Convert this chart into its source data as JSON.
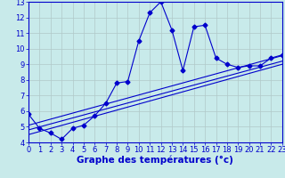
{
  "xlabel": "Graphe des températures (°c)",
  "background_color": "#c8eaea",
  "grid_color": "#b0c8c8",
  "line_color": "#0000cc",
  "x_values": [
    0,
    1,
    2,
    3,
    4,
    5,
    6,
    7,
    8,
    9,
    10,
    11,
    12,
    13,
    14,
    15,
    16,
    17,
    18,
    19,
    20,
    21,
    22,
    23
  ],
  "y_main": [
    5.8,
    4.9,
    4.6,
    4.2,
    4.9,
    5.1,
    5.7,
    6.5,
    7.8,
    7.9,
    10.5,
    12.3,
    13.0,
    11.2,
    8.6,
    11.4,
    11.5,
    9.4,
    9.0,
    8.8,
    8.9,
    8.9,
    9.4,
    9.6
  ],
  "y_line1_start": 4.5,
  "y_line1_end": 9.0,
  "y_line2_start": 4.8,
  "y_line2_end": 9.2,
  "y_line3_start": 5.1,
  "y_line3_end": 9.55,
  "xlim": [
    0,
    23
  ],
  "ylim": [
    4,
    13
  ],
  "yticks": [
    4,
    5,
    6,
    7,
    8,
    9,
    10,
    11,
    12,
    13
  ],
  "xticks": [
    0,
    1,
    2,
    3,
    4,
    5,
    6,
    7,
    8,
    9,
    10,
    11,
    12,
    13,
    14,
    15,
    16,
    17,
    18,
    19,
    20,
    21,
    22,
    23
  ],
  "marker": "D",
  "markersize": 2.5,
  "linewidth": 0.8,
  "xlabel_fontsize": 7.5,
  "tick_fontsize": 6.0
}
